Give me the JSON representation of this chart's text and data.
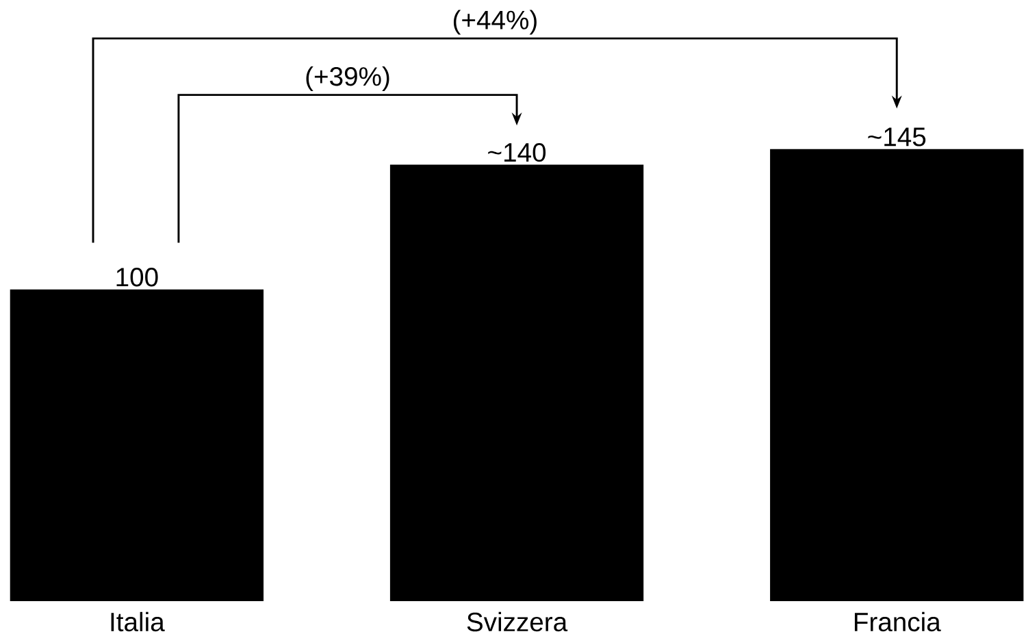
{
  "chart_data": {
    "type": "bar",
    "categories": [
      "Italia",
      "Svizzera",
      "Francia"
    ],
    "values": [
      100,
      140,
      145
    ],
    "value_labels": [
      "100",
      "~140",
      "~145"
    ],
    "color": "#000000",
    "annotations": [
      "(+39%)",
      "(+44%)"
    ]
  }
}
